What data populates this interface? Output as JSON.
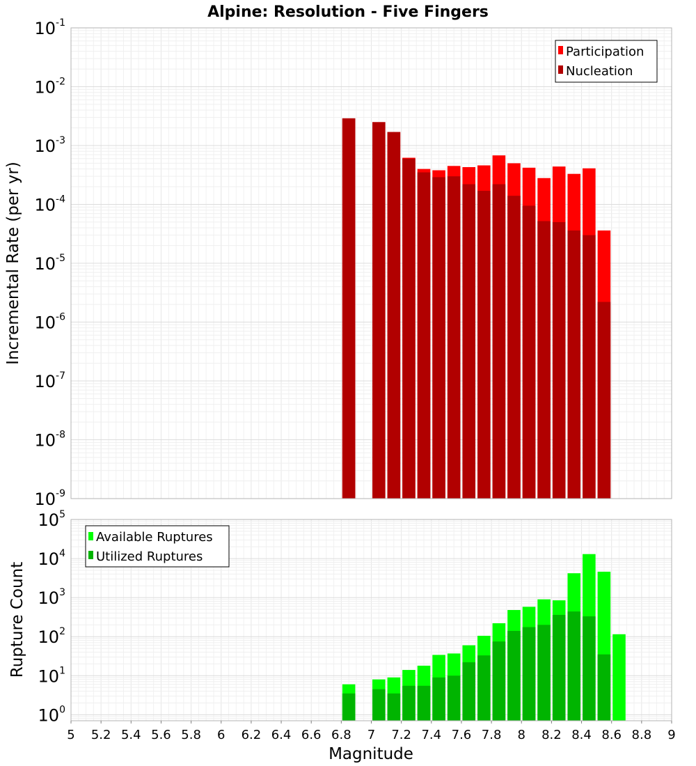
{
  "chart_data": [
    {
      "type": "bar",
      "title": "Alpine: Resolution - Five Fingers",
      "ylabel": "Incremental Rate (per yr)",
      "xlabel": "",
      "y_scale": "log",
      "ylim": [
        1e-09,
        0.1
      ],
      "xlim": [
        5,
        9
      ],
      "grid": true,
      "legend_position": "top-right",
      "ytick_exponents": [
        -9,
        -8,
        -7,
        -6,
        -5,
        -4,
        -3,
        -2,
        -1
      ],
      "series": [
        {
          "name": "Participation",
          "color": "#ff0000",
          "x": [
            6.85,
            7.05,
            7.15,
            7.25,
            7.35,
            7.45,
            7.55,
            7.65,
            7.75,
            7.85,
            7.95,
            8.05,
            8.15,
            8.25,
            8.35,
            8.45,
            8.55
          ],
          "values": [
            0.0029,
            0.0025,
            0.0017,
            0.00062,
            0.0004,
            0.00038,
            0.00045,
            0.00043,
            0.00046,
            0.00068,
            0.0005,
            0.00042,
            0.00028,
            0.00044,
            0.00033,
            0.00041,
            3.6e-05
          ]
        },
        {
          "name": "Nucleation",
          "color": "#b10000",
          "x": [
            6.85,
            7.05,
            7.15,
            7.25,
            7.35,
            7.45,
            7.55,
            7.65,
            7.75,
            7.85,
            7.95,
            8.05,
            8.15,
            8.25,
            8.35,
            8.45,
            8.55
          ],
          "values": [
            0.0029,
            0.0025,
            0.0017,
            0.0006,
            0.00035,
            0.00029,
            0.0003,
            0.00022,
            0.00017,
            0.00022,
            0.00014,
            9.5e-05,
            5.2e-05,
            5e-05,
            3.6e-05,
            3e-05,
            2.2e-06
          ]
        }
      ]
    },
    {
      "type": "bar",
      "ylabel": "Rupture Count",
      "xlabel": "Magnitude",
      "y_scale": "log",
      "ylim": [
        0.7,
        100000
      ],
      "xlim": [
        5,
        9
      ],
      "grid": true,
      "legend_position": "top-left",
      "ytick_exponents": [
        0,
        1,
        2,
        3,
        4,
        5
      ],
      "x_ticks": [
        "5",
        "5.2",
        "5.4",
        "5.6",
        "5.8",
        "6",
        "6.2",
        "6.4",
        "6.6",
        "6.8",
        "7",
        "7.2",
        "7.4",
        "7.6",
        "7.8",
        "8",
        "8.2",
        "8.4",
        "8.6",
        "8.8",
        "9"
      ],
      "series": [
        {
          "name": "Available Ruptures",
          "color": "#00ff00",
          "x": [
            6.85,
            7.05,
            7.15,
            7.25,
            7.35,
            7.45,
            7.55,
            7.65,
            7.75,
            7.85,
            7.95,
            8.05,
            8.15,
            8.25,
            8.35,
            8.45,
            8.55,
            8.65
          ],
          "values": [
            6,
            8,
            9,
            14,
            18,
            34,
            37,
            60,
            105,
            220,
            480,
            580,
            900,
            850,
            4200,
            13000,
            4600,
            115
          ]
        },
        {
          "name": "Utilized Ruptures",
          "color": "#00b400",
          "x": [
            6.85,
            7.05,
            7.15,
            7.25,
            7.35,
            7.45,
            7.55,
            7.65,
            7.75,
            7.85,
            7.95,
            8.05,
            8.15,
            8.25,
            8.35,
            8.45,
            8.55
          ],
          "values": [
            3.5,
            4.5,
            3.5,
            5.5,
            5.5,
            9,
            10,
            22,
            33,
            75,
            140,
            175,
            200,
            360,
            440,
            330,
            35
          ]
        }
      ]
    }
  ]
}
